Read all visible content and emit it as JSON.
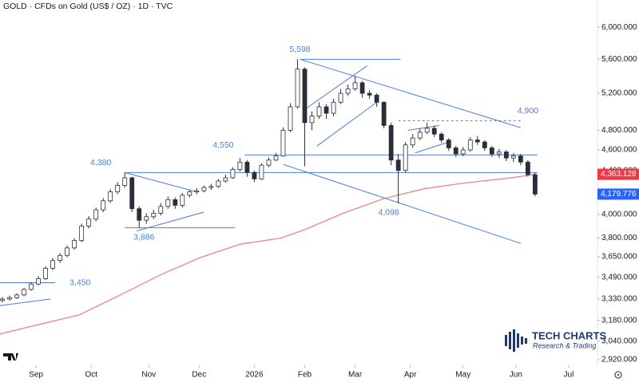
{
  "chart_data": {
    "type": "candlestick",
    "title": "GOLD · CFDs on Gold (US$ / OZ) · 1D · TVC",
    "log_scale": true,
    "up_color": "#ffffff",
    "down_color": "#2a2e39",
    "outline_color": "#2a2e39",
    "xlim": [
      0,
      249
    ],
    "xticks": [
      {
        "value": 15,
        "label": "Sep"
      },
      {
        "value": 38,
        "label": "Oct"
      },
      {
        "value": 62,
        "label": "Nov"
      },
      {
        "value": 83,
        "label": "Dec"
      },
      {
        "value": 106,
        "label": "2026"
      },
      {
        "value": 127,
        "label": "Feb"
      },
      {
        "value": 148,
        "label": "Mar"
      },
      {
        "value": 171,
        "label": "Apr"
      },
      {
        "value": 193,
        "label": "May"
      },
      {
        "value": 215,
        "label": "Jun"
      },
      {
        "value": 237,
        "label": "Jul"
      }
    ],
    "ylim": [
      2885,
      6365
    ],
    "yticks": [
      {
        "value": 6000,
        "label": "6,000.000"
      },
      {
        "value": 5600,
        "label": "5,600.000"
      },
      {
        "value": 5200,
        "label": "5,200.000"
      },
      {
        "value": 4800,
        "label": "4,800.000"
      },
      {
        "value": 4600,
        "label": "4,600.000"
      },
      {
        "value": 4400,
        "label": "4,400.000"
      },
      {
        "value": 4200,
        "label": "4,200.000"
      },
      {
        "value": 4000,
        "label": "4,000.000"
      },
      {
        "value": 3800,
        "label": "3,800.000"
      },
      {
        "value": 3650,
        "label": "3,650.000"
      },
      {
        "value": 3490,
        "label": "3,490.000"
      },
      {
        "value": 3330,
        "label": "3,330.000"
      },
      {
        "value": 3180,
        "label": "3,180.000"
      },
      {
        "value": 3040,
        "label": "3,040.000"
      },
      {
        "value": 2920,
        "label": "2,920.000"
      }
    ],
    "x": [
      1,
      4,
      7,
      10,
      13,
      16,
      19,
      22,
      25,
      28,
      31,
      34,
      37,
      40,
      43,
      46,
      49,
      52,
      55,
      58,
      61,
      64,
      67,
      70,
      73,
      76,
      79,
      82,
      85,
      88,
      91,
      94,
      97,
      100,
      103,
      106,
      109,
      112,
      115,
      118,
      121,
      124,
      127,
      130,
      133,
      136,
      139,
      142,
      145,
      148,
      151,
      154,
      157,
      160,
      163,
      166,
      169,
      172,
      175,
      178,
      181,
      184,
      187,
      190,
      193,
      196,
      199,
      202,
      205,
      208,
      211,
      214,
      217,
      220,
      223
    ],
    "open": [
      3320,
      3330,
      3340,
      3360,
      3400,
      3440,
      3480,
      3560,
      3620,
      3660,
      3720,
      3780,
      3900,
      3960,
      4040,
      4120,
      4200,
      4260,
      4330,
      4050,
      3950,
      3980,
      4010,
      4070,
      4130,
      4080,
      4170,
      4200,
      4210,
      4240,
      4250,
      4300,
      4330,
      4410,
      4480,
      4380,
      4320,
      4450,
      4500,
      4540,
      4800,
      5050,
      5480,
      4880,
      4950,
      5050,
      4980,
      5100,
      5200,
      5250,
      5320,
      5200,
      5180,
      5100,
      4850,
      4500,
      4400,
      4650,
      4720,
      4780,
      4820,
      4760,
      4700,
      4620,
      4560,
      4600,
      4700,
      4680,
      4620,
      4560,
      4580,
      4520,
      4540,
      4480,
      4360
    ],
    "high": [
      3345,
      3355,
      3372,
      3412,
      3455,
      3500,
      3575,
      3640,
      3680,
      3740,
      3800,
      3920,
      3985,
      4060,
      4145,
      4225,
      4290,
      4380,
      4340,
      4070,
      4010,
      4040,
      4100,
      4160,
      4150,
      4190,
      4220,
      4235,
      4260,
      4275,
      4320,
      4360,
      4430,
      4520,
      4500,
      4400,
      4470,
      4525,
      4570,
      4830,
      5090,
      5598,
      5500,
      5000,
      5100,
      5080,
      5140,
      5250,
      5300,
      5400,
      5340,
      5240,
      5200,
      5110,
      4880,
      4560,
      4680,
      4760,
      4820,
      4880,
      4850,
      4780,
      4720,
      4640,
      4630,
      4730,
      4740,
      4700,
      4640,
      4610,
      4600,
      4570,
      4560,
      4500,
      4380
    ],
    "low": [
      3305,
      3318,
      3330,
      3350,
      3390,
      3430,
      3470,
      3545,
      3600,
      3645,
      3705,
      3765,
      3880,
      3940,
      4020,
      4100,
      4180,
      4240,
      4020,
      3886,
      3920,
      3960,
      3990,
      4050,
      4050,
      4060,
      4150,
      4180,
      4195,
      4220,
      4235,
      4285,
      4320,
      4390,
      4340,
      4290,
      4310,
      4430,
      4490,
      4530,
      4780,
      5030,
      4440,
      4800,
      4920,
      4920,
      4950,
      5080,
      5170,
      5230,
      5150,
      5140,
      5050,
      4820,
      4450,
      4098,
      4380,
      4620,
      4700,
      4760,
      4730,
      4670,
      4590,
      4530,
      4540,
      4580,
      4650,
      4590,
      4530,
      4520,
      4490,
      4480,
      4450,
      4340,
      4160
    ],
    "close": [
      3330,
      3340,
      3360,
      3400,
      3440,
      3480,
      3560,
      3620,
      3660,
      3720,
      3780,
      3900,
      3960,
      4040,
      4120,
      4200,
      4260,
      4330,
      4050,
      3950,
      3980,
      4010,
      4070,
      4130,
      4080,
      4170,
      4200,
      4210,
      4240,
      4250,
      4300,
      4330,
      4410,
      4480,
      4380,
      4320,
      4450,
      4500,
      4540,
      4800,
      5050,
      5480,
      4880,
      4950,
      5050,
      4980,
      5100,
      5200,
      5250,
      5320,
      5200,
      5180,
      5100,
      4850,
      4500,
      4400,
      4650,
      4720,
      4780,
      4820,
      4760,
      4700,
      4620,
      4560,
      4600,
      4700,
      4680,
      4620,
      4560,
      4580,
      4520,
      4540,
      4480,
      4360,
      4180
    ],
    "moving_average": {
      "color": "#f0787a",
      "x": [
        0,
        33,
        50,
        67,
        83,
        100,
        117,
        127,
        143,
        160,
        177,
        193,
        213,
        223
      ],
      "values": [
        3088,
        3218,
        3358,
        3510,
        3640,
        3750,
        3800,
        3870,
        4010,
        4140,
        4230,
        4280,
        4330,
        4363
      ]
    },
    "line_color": "#4a7fd8",
    "lines": [
      {
        "x": [
          0,
          23
        ],
        "values": [
          3450,
          3450
        ]
      },
      {
        "x": [
          0,
          21
        ],
        "values": [
          3283,
          3330
        ]
      },
      {
        "x": [
          52,
          224
        ],
        "values": [
          4380,
          4380
        ]
      },
      {
        "x": [
          52,
          82
        ],
        "values": [
          4380,
          4200
        ]
      },
      {
        "x": [
          57,
          85
        ],
        "values": [
          3860,
          4020
        ]
      },
      {
        "x": [
          52,
          98
        ],
        "values": [
          3886,
          3886
        ]
      },
      {
        "x": [
          102,
          224
        ],
        "values": [
          4550,
          4550
        ]
      },
      {
        "x": [
          125,
          167
        ],
        "values": [
          5598,
          5598
        ]
      },
      {
        "x": [
          125,
          217
        ],
        "values": [
          5598,
          4827
        ]
      },
      {
        "x": [
          118,
          217
        ],
        "values": [
          4458,
          3757
        ]
      },
      {
        "x": [
          128,
          153
        ],
        "values": [
          5040,
          5520
        ]
      },
      {
        "x": [
          132,
          157
        ],
        "values": [
          4637,
          5100
        ]
      },
      {
        "x": [
          170,
          183
        ],
        "values": [
          4800,
          4850
        ]
      },
      {
        "x": [
          173,
          187
        ],
        "values": [
          4570,
          4680
        ]
      },
      {
        "x": [
          166,
          217
        ],
        "values": [
          4900,
          4900
        ],
        "dashed": true
      }
    ],
    "annotations": [
      {
        "x": 29,
        "value": 3450,
        "label": "3,450",
        "placement": "right"
      },
      {
        "x": 42,
        "value": 4380,
        "label": "4,380",
        "placement": "above"
      },
      {
        "x": 60,
        "value": 3886,
        "label": "3,886",
        "placement": "below"
      },
      {
        "x": 93,
        "value": 4550,
        "label": "4,550",
        "placement": "above"
      },
      {
        "x": 125,
        "value": 5598,
        "label": "5,598",
        "placement": "above"
      },
      {
        "x": 220,
        "value": 4900,
        "label": "4,900",
        "placement": "above"
      },
      {
        "x": 162,
        "value": 4098,
        "label": "4,098",
        "placement": "below"
      }
    ],
    "price_markers": [
      {
        "value": 4363.128,
        "label": "4,363.128",
        "color": "#f23645"
      },
      {
        "value": 4179.776,
        "label": "4,179.776",
        "color": "#2962ff"
      }
    ]
  },
  "logo": {
    "name": "TECH CHARTS",
    "tagline": "Research & Trading"
  }
}
